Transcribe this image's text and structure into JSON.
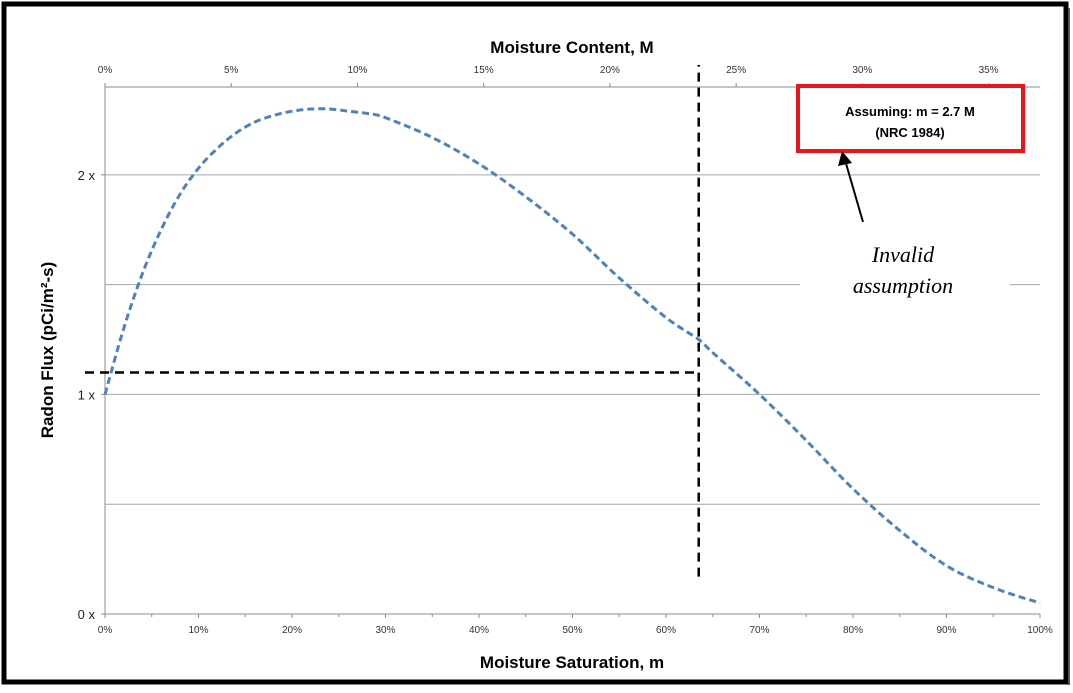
{
  "chart_data": {
    "type": "line",
    "x_axis_bottom": {
      "label": "Moisture Saturation, m",
      "range": [
        0,
        100
      ],
      "ticks": [
        0,
        10,
        20,
        30,
        40,
        50,
        60,
        70,
        80,
        90,
        100
      ],
      "tick_labels": [
        "0%",
        "10%",
        "20%",
        "30%",
        "40%",
        "50%",
        "60%",
        "70%",
        "80%",
        "90%",
        "100%"
      ]
    },
    "x_axis_top": {
      "label": "Moisture Content, M",
      "ticks": [
        0,
        5,
        10,
        15,
        20,
        25,
        30,
        35
      ],
      "tick_labels": [
        "0%",
        "5%",
        "10%",
        "15%",
        "20%",
        "25%",
        "30%",
        "35%"
      ]
    },
    "y_axis": {
      "label": "Radon Flux (pCi/m²-s)",
      "range": [
        0,
        2.4
      ],
      "gridlines": [
        0.5,
        1.0,
        1.5,
        2.0
      ],
      "ticks": [
        0,
        1,
        2
      ],
      "tick_labels": [
        "0 x",
        "1 x",
        "2 x"
      ]
    },
    "grid": true,
    "series": [
      {
        "color": "#4f81bd",
        "style": "dashed",
        "x": [
          0,
          2,
          4,
          6,
          8,
          10,
          12,
          14,
          16,
          18,
          20,
          22,
          24,
          26,
          28,
          30,
          35,
          40,
          45,
          50,
          55,
          60,
          63.5,
          65,
          70,
          75,
          80,
          85,
          90,
          95,
          100
        ],
        "y": [
          1.0,
          1.3,
          1.55,
          1.75,
          1.91,
          2.03,
          2.12,
          2.19,
          2.24,
          2.27,
          2.29,
          2.3,
          2.3,
          2.29,
          2.28,
          2.26,
          2.17,
          2.05,
          1.9,
          1.73,
          1.53,
          1.35,
          1.25,
          1.19,
          1.0,
          0.79,
          0.57,
          0.38,
          0.22,
          0.12,
          0.05
        ]
      }
    ],
    "reference_lines": {
      "vertical": {
        "x": 63.5,
        "y_from": 0.17,
        "y_to": 2.5
      },
      "horizontal": {
        "y": 1.1,
        "x_from": 0,
        "x_to": 63.5
      }
    },
    "annotations": {
      "box_line1": "Assuming: m = 2.7 M",
      "box_line2": "(NRC 1984)",
      "box_border_color": "#e8161b",
      "callout_line1": "Invalid",
      "callout_line2": "assumption"
    }
  }
}
